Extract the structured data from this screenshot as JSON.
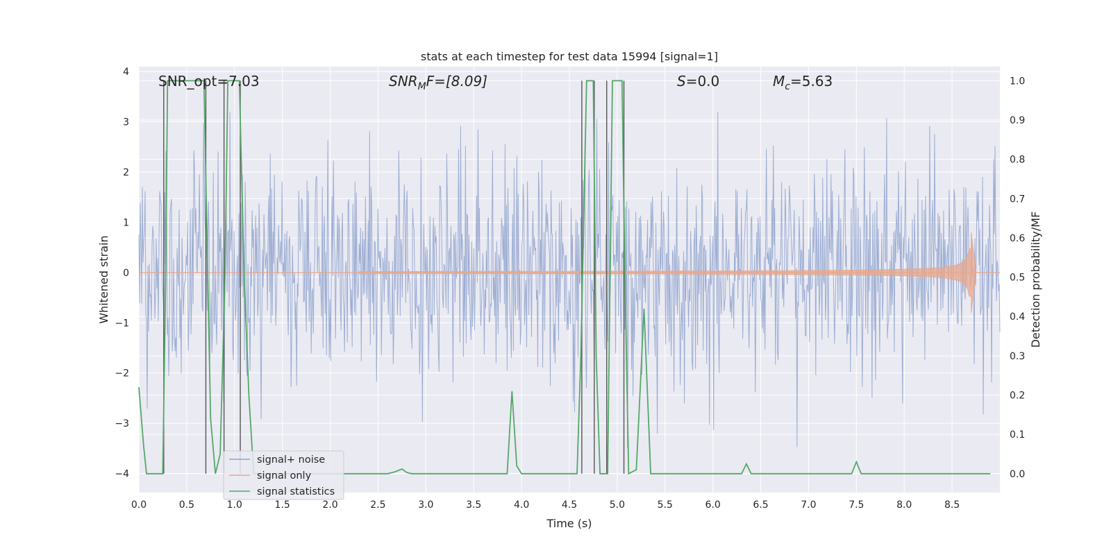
{
  "chart_data": {
    "type": "line",
    "title": "stats at each timestep for test data 15994 [signal=1]",
    "xlabel": "Time (s)",
    "ylabel_left": "Whitened strain",
    "ylabel_right": "Detection probability/MF",
    "xlim": [
      0.0,
      9.0
    ],
    "ylim_left": [
      -4.38,
      4.1
    ],
    "ylim_right": [
      -0.048,
      1.036
    ],
    "x_ticks": [
      "0.0",
      "0.5",
      "1.0",
      "1.5",
      "2.0",
      "2.5",
      "3.0",
      "3.5",
      "4.0",
      "4.5",
      "5.0",
      "5.5",
      "6.0",
      "6.5",
      "7.0",
      "7.5",
      "8.0",
      "8.5"
    ],
    "y_left_ticks": [
      "4",
      "3",
      "2",
      "1",
      "0",
      "−1",
      "−2",
      "−3",
      "−4"
    ],
    "y_right_ticks": [
      "1.0",
      "0.9",
      "0.8",
      "0.7",
      "0.6",
      "0.5",
      "0.4",
      "0.3",
      "0.2",
      "0.1",
      "0.0"
    ],
    "annotations": {
      "snr_opt": "SNR_opt=7.03",
      "snr_mf_sym": "SNR",
      "snr_mf_sub": "M",
      "snr_mf_rest": "F=[8.09]",
      "s_sym": "S",
      "s_rest": "=0.0",
      "mc_sym": "M",
      "mc_sub": "c",
      "mc_rest": "=5.63"
    },
    "legend": {
      "placement": "lower-left",
      "entries": [
        {
          "label": "signal+ noise",
          "color": "#8fa3ce"
        },
        {
          "label": "signal only",
          "color": "#e8a78b"
        },
        {
          "label": "signal statistics",
          "color": "#55a868"
        }
      ]
    },
    "series": [
      {
        "name": "signal+ noise",
        "axis": "left",
        "description": "whitened strain noise band",
        "typical_range": [
          -1.8,
          1.8
        ],
        "peak_range": [
          -3.5,
          3.2
        ]
      },
      {
        "name": "signal only",
        "axis": "left",
        "chirp_start": 2.3,
        "chirp_peak_time": 8.7,
        "chirp_peak_amp": 0.8,
        "ringdown_end": 8.75
      },
      {
        "name": "signal statistics",
        "axis": "right",
        "points": [
          [
            0.0,
            0.22
          ],
          [
            0.05,
            0.07
          ],
          [
            0.08,
            0.0
          ],
          [
            0.25,
            0.0
          ],
          [
            0.28,
            0.5
          ],
          [
            0.3,
            1.0
          ],
          [
            0.4,
            1.0
          ],
          [
            0.5,
            1.0
          ],
          [
            0.6,
            1.0
          ],
          [
            0.68,
            1.0
          ],
          [
            0.72,
            0.5
          ],
          [
            0.75,
            0.14
          ],
          [
            0.8,
            0.0
          ],
          [
            0.85,
            0.05
          ],
          [
            0.9,
            0.5
          ],
          [
            0.93,
            1.0
          ],
          [
            1.05,
            1.0
          ],
          [
            1.1,
            0.5
          ],
          [
            1.15,
            0.2
          ],
          [
            1.2,
            0.0
          ],
          [
            2.6,
            0.0
          ],
          [
            2.68,
            0.005
          ],
          [
            2.75,
            0.012
          ],
          [
            2.8,
            0.003
          ],
          [
            2.85,
            0.0
          ],
          [
            3.85,
            0.0
          ],
          [
            3.9,
            0.21
          ],
          [
            3.95,
            0.02
          ],
          [
            4.0,
            0.0
          ],
          [
            4.58,
            0.0
          ],
          [
            4.62,
            0.3
          ],
          [
            4.68,
            1.0
          ],
          [
            4.75,
            1.0
          ],
          [
            4.78,
            0.3
          ],
          [
            4.82,
            0.0
          ],
          [
            4.9,
            0.0
          ],
          [
            4.95,
            1.0
          ],
          [
            5.0,
            1.0
          ],
          [
            5.05,
            1.0
          ],
          [
            5.08,
            0.5
          ],
          [
            5.12,
            0.0
          ],
          [
            5.2,
            0.01
          ],
          [
            5.28,
            0.42
          ],
          [
            5.35,
            0.0
          ],
          [
            5.4,
            0.0
          ],
          [
            6.3,
            0.0
          ],
          [
            6.35,
            0.025
          ],
          [
            6.4,
            0.0
          ],
          [
            7.45,
            0.0
          ],
          [
            7.5,
            0.03
          ],
          [
            7.55,
            0.0
          ],
          [
            8.9,
            0.0
          ]
        ]
      }
    ],
    "vertical_lines": [
      0.26,
      0.7,
      0.89,
      1.06,
      4.63,
      4.76,
      4.89,
      5.07
    ]
  }
}
